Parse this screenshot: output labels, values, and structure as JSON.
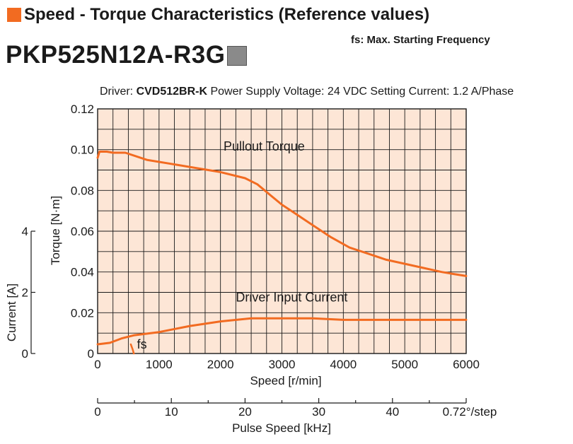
{
  "header": {
    "title": "Speed - Torque Characteristics (Reference values)",
    "note": "fs: Max. Starting Frequency",
    "model": "PKP525N12A-R3G"
  },
  "conditions": {
    "driver_label": "Driver:",
    "driver_model": "CVD512BR-K",
    "rest": "Power Supply Voltage: 24 VDC  Setting Current: 1.2 A/Phase"
  },
  "colors": {
    "plot_bg": "#fde6d6",
    "curve": "#f26b21",
    "accent_square": "#f26b21",
    "grey_square": "#8a8a8a"
  },
  "chart_data": {
    "type": "line",
    "xlabel": "Speed [r/min]",
    "ylabel": "Torque [N·m]",
    "xlim": [
      0,
      6000
    ],
    "ylim": [
      0,
      0.12
    ],
    "x_ticks": [
      0,
      1000,
      2000,
      3000,
      4000,
      5000,
      6000
    ],
    "y_ticks": [
      0,
      0.02,
      0.04,
      0.06,
      0.08,
      0.1,
      0.12
    ],
    "x_tick_labels": [
      "0",
      "1000",
      "2000",
      "3000",
      "4000",
      "5000",
      "6000"
    ],
    "y_tick_labels": [
      "0",
      "0.02",
      "0.04",
      "0.06",
      "0.08",
      "0.10",
      "0.12"
    ],
    "grid": true,
    "secondary_y": {
      "label": "Current [A]",
      "lim": [
        0,
        8
      ],
      "ticks": [
        0,
        2,
        4
      ],
      "tick_labels": [
        "0",
        "2",
        "4"
      ]
    },
    "secondary_x": {
      "label": "Pulse Speed [kHz]",
      "lim": [
        0,
        50
      ],
      "ticks": [
        0,
        10,
        20,
        30,
        40
      ],
      "tick_labels": [
        "0",
        "10",
        "20",
        "30",
        "40"
      ],
      "end_label": "0.72°/step"
    },
    "series": [
      {
        "name": "Pullout Torque",
        "axis": "torque",
        "x": [
          0,
          30,
          80,
          150,
          250,
          450,
          800,
          1200,
          1600,
          2000,
          2400,
          2600,
          2800,
          3000,
          3200,
          3500,
          3800,
          4100,
          4400,
          4700,
          5000,
          5300,
          5600,
          5800,
          6000
        ],
        "y": [
          0.096,
          0.099,
          0.099,
          0.099,
          0.0985,
          0.0985,
          0.095,
          0.093,
          0.091,
          0.089,
          0.086,
          0.083,
          0.078,
          0.073,
          0.069,
          0.063,
          0.057,
          0.052,
          0.049,
          0.046,
          0.044,
          0.042,
          0.04,
          0.039,
          0.038
        ]
      },
      {
        "name": "Driver Input Current",
        "axis": "current",
        "x": [
          0,
          200,
          400,
          600,
          1000,
          1500,
          2000,
          2500,
          3000,
          3500,
          4000,
          4500,
          5000,
          5500,
          6000
        ],
        "y": [
          0.3,
          0.35,
          0.5,
          0.6,
          0.7,
          0.9,
          1.05,
          1.15,
          1.15,
          1.15,
          1.1,
          1.1,
          1.1,
          1.1,
          1.1
        ]
      }
    ],
    "annotations": [
      {
        "text": "Pullout Torque",
        "x": 2050,
        "y": 0.0995
      },
      {
        "text": "Driver Input Current",
        "x": 2250,
        "y": 0.0255
      },
      {
        "text": "fs",
        "x": 640,
        "y": 0.0025
      }
    ],
    "fs_marker": {
      "x": [
        540,
        570,
        590
      ],
      "y": [
        0.0045,
        0.002,
        0.0
      ]
    }
  }
}
